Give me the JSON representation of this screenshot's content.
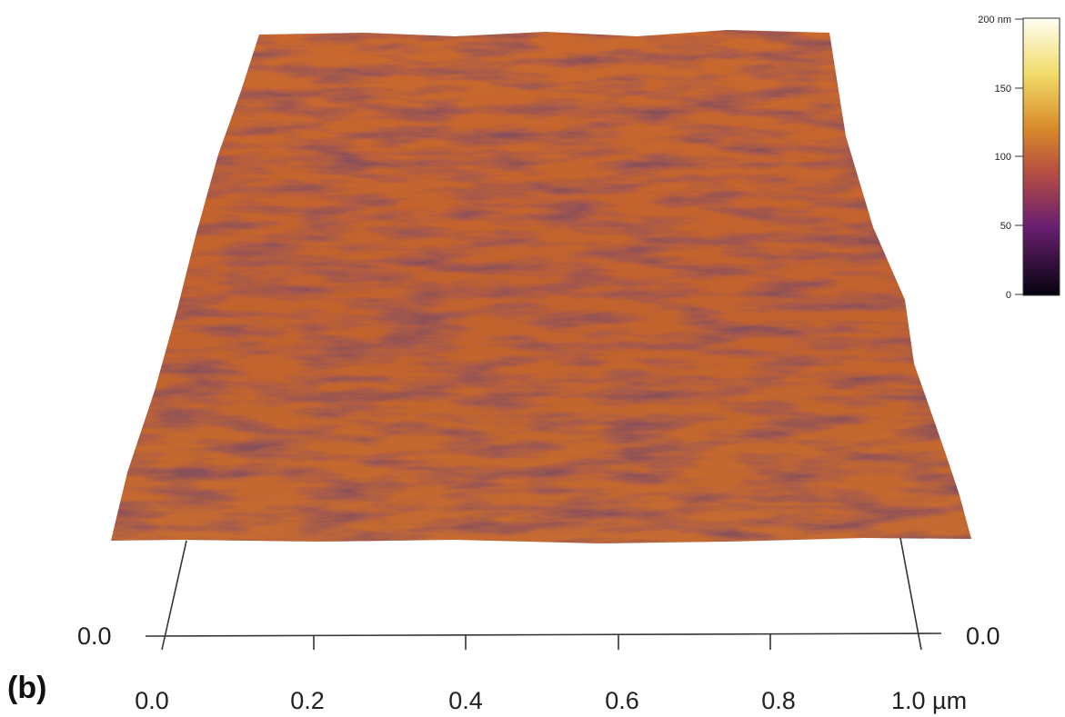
{
  "figure": {
    "panel_label": "(b)",
    "x_axis": {
      "tick_labels": [
        "0.0",
        "0.2",
        "0.4",
        "0.6",
        "0.8",
        "1.0 µm"
      ]
    },
    "depth_axis": {
      "left_label": "0.0",
      "right_label": "0.0"
    },
    "colorbar": {
      "tick_labels": [
        "200 nm",
        "150",
        "100",
        "50",
        "0"
      ]
    }
  }
}
